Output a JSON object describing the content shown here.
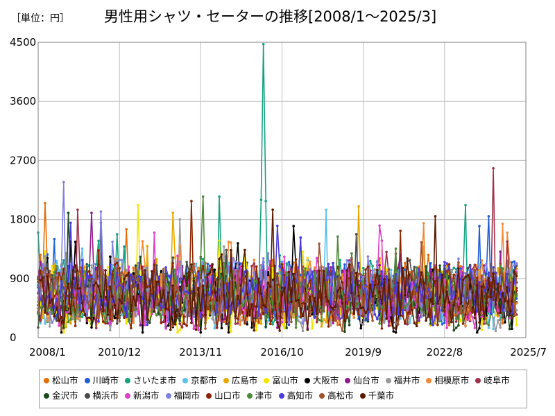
{
  "chart_data": {
    "type": "line",
    "unit_label": "［単位：円］",
    "title": "男性用シャツ・セーターの推移[2008/1～2025/3]",
    "x_ticks": [
      "2008/1",
      "2010/12",
      "2013/11",
      "2016/10",
      "2019/9",
      "2022/8",
      "2025/7"
    ],
    "y_ticks": [
      "0",
      "900",
      "1800",
      "2700",
      "3600",
      "4500"
    ],
    "ylim": [
      0,
      4500
    ],
    "xlim": [
      "2008/1",
      "2025/7"
    ],
    "grid": true,
    "legend_position": "bottom",
    "series": [
      {
        "name": "松山市",
        "color": "#e46c0a",
        "base": 650,
        "spikes": [
          [
            "2008/4",
            2050
          ],
          [
            "2011/3",
            1650
          ]
        ]
      },
      {
        "name": "川崎市",
        "color": "#1f5fd6",
        "base": 700,
        "spikes": [
          [
            "2024/3",
            1850
          ],
          [
            "2023/11",
            1700
          ]
        ]
      },
      {
        "name": "さいたま市",
        "color": "#14a37f",
        "base": 720,
        "spikes": [
          [
            "2016/2",
            4470
          ],
          [
            "2016/1",
            2100
          ],
          [
            "2016/3",
            2080
          ],
          [
            "2014/7",
            2150
          ],
          [
            "2023/5",
            2020
          ]
        ]
      },
      {
        "name": "京都市",
        "color": "#5bc0eb",
        "base": 640,
        "spikes": [
          [
            "2018/5",
            1950
          ]
        ]
      },
      {
        "name": "広島市",
        "color": "#e6a800",
        "base": 620,
        "spikes": [
          [
            "2019/7",
            2000
          ],
          [
            "2012/11",
            1900
          ]
        ]
      },
      {
        "name": "富山市",
        "color": "#f2e600",
        "base": 560,
        "spikes": [
          [
            "2011/8",
            2020
          ]
        ]
      },
      {
        "name": "大阪市",
        "color": "#000000",
        "base": 540,
        "spikes": [
          [
            "2017/3",
            1700
          ]
        ]
      },
      {
        "name": "仙台市",
        "color": "#8e1a8e",
        "base": 660,
        "spikes": [
          [
            "2009/12",
            1900
          ]
        ]
      },
      {
        "name": "福井市",
        "color": "#9a9a9a",
        "base": 600,
        "spikes": [
          [
            "2013/2",
            1800
          ]
        ]
      },
      {
        "name": "相模原市",
        "color": "#ef8a3a",
        "base": 700,
        "spikes": [
          [
            "2024/11",
            1600
          ]
        ]
      },
      {
        "name": "岐阜市",
        "color": "#a0304a",
        "base": 650,
        "spikes": [
          [
            "2024/5",
            2580
          ],
          [
            "2009/6",
            1950
          ]
        ]
      },
      {
        "name": "金沢市",
        "color": "#1c4a1c",
        "base": 610,
        "spikes": [
          [
            "2009/2",
            1900
          ]
        ]
      },
      {
        "name": "横浜市",
        "color": "#4a4a4a",
        "base": 680,
        "spikes": [
          [
            "2010/4",
            1750
          ]
        ]
      },
      {
        "name": "新潟市",
        "color": "#e040c8",
        "base": 620,
        "spikes": [
          [
            "2012/3",
            1600
          ]
        ]
      },
      {
        "name": "福岡市",
        "color": "#8080e0",
        "base": 700,
        "spikes": [
          [
            "2008/12",
            2370
          ],
          [
            "2010/4",
            1920
          ]
        ]
      },
      {
        "name": "山口市",
        "color": "#8b2500",
        "base": 640,
        "spikes": [
          [
            "2013/7",
            2080
          ]
        ]
      },
      {
        "name": "津市",
        "color": "#4f8a3a",
        "base": 650,
        "spikes": [
          [
            "2013/12",
            2150
          ]
        ]
      },
      {
        "name": "高知市",
        "color": "#4a3ae0",
        "base": 660,
        "spikes": [
          [
            "2009/3",
            1750
          ]
        ]
      },
      {
        "name": "高松市",
        "color": "#a0522d",
        "base": 620,
        "spikes": [
          [
            "2021/10",
            1450
          ]
        ]
      },
      {
        "name": "千葉市",
        "color": "#5a1a00",
        "base": 610,
        "spikes": [
          [
            "2016/6",
            1950
          ],
          [
            "2022/4",
            1850
          ]
        ]
      }
    ]
  }
}
